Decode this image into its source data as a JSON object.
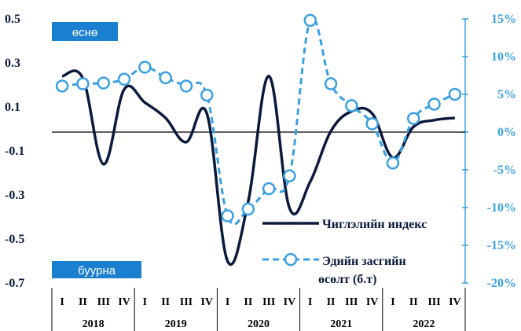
{
  "chart_data": {
    "type": "line",
    "categories": [
      "2018 I",
      "2018 II",
      "2018 III",
      "2018 IV",
      "2019 I",
      "2019 II",
      "2019 III",
      "2019 IV",
      "2020 I",
      "2020 II",
      "2020 III",
      "2020 IV",
      "2021 I",
      "2021 II",
      "2021 III",
      "2021 IV",
      "2022 I",
      "2022 II",
      "2022 III",
      "2022 IV"
    ],
    "quarter_labels": [
      "I",
      "II",
      "III",
      "IV"
    ],
    "years": [
      "2018",
      "2019",
      "2020",
      "2021",
      "2022"
    ],
    "left_axis": {
      "ylim": [
        -0.7,
        0.5
      ],
      "ticks": [
        "0.5",
        "0.3",
        "0.1",
        "-0.1",
        "-0.3",
        "-0.5",
        "-0.7"
      ],
      "tick_values": [
        0.5,
        0.3,
        0.1,
        -0.1,
        -0.3,
        -0.5,
        -0.7
      ]
    },
    "right_axis": {
      "ylim": [
        -20,
        15
      ],
      "ticks": [
        "15%",
        "10%",
        "5%",
        "0%",
        "-5%",
        "-10%",
        "-15%",
        "-20%"
      ],
      "tick_values": [
        15,
        10,
        5,
        0,
        -5,
        -10,
        -15,
        -20
      ]
    },
    "series": [
      {
        "name": "Чиглэлийн индекс",
        "axis": "left",
        "style": "solid",
        "color": "#0b1a3c",
        "values": [
          0.24,
          0.23,
          -0.16,
          0.18,
          0.12,
          0.05,
          -0.06,
          0.07,
          -0.6,
          -0.33,
          0.24,
          -0.36,
          -0.24,
          -0.01,
          0.08,
          0.07,
          -0.13,
          0.01,
          0.04,
          0.05
        ]
      },
      {
        "name": "Эдийн засгийн өсөлт (б.т)",
        "name_line1": "Эдийн засгийн",
        "name_line2": "өсөлт (б.т)",
        "axis": "right",
        "style": "dashed-markers",
        "color": "#3aa0e0",
        "values": [
          6.1,
          6.4,
          6.5,
          7.0,
          8.6,
          7.2,
          6.1,
          4.9,
          -11.1,
          -10.2,
          -7.5,
          -5.8,
          14.8,
          6.4,
          3.5,
          1.1,
          -4.1,
          1.8,
          3.7,
          5.0
        ]
      }
    ],
    "annotations": {
      "top": "өснө",
      "bottom": "буурна"
    },
    "grid": false,
    "legend": "bottom-right"
  }
}
